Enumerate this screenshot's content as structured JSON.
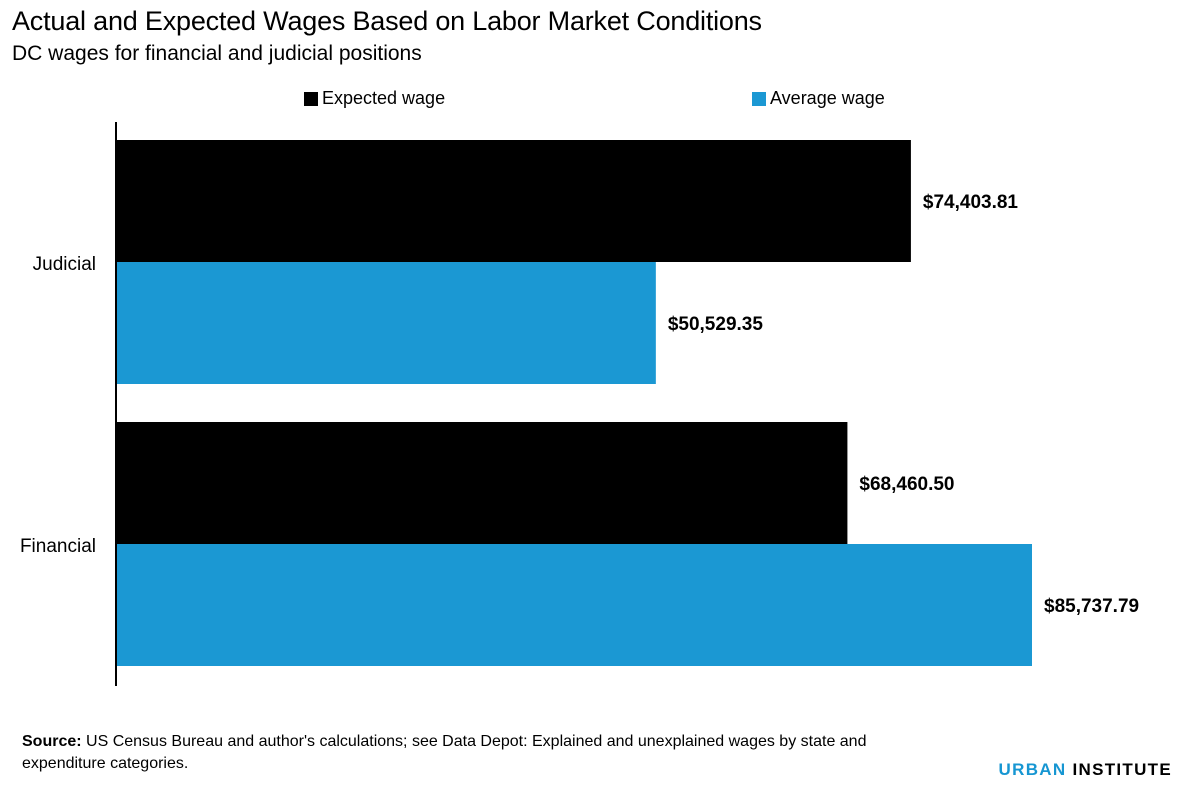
{
  "header": {
    "title": "Actual and Expected Wages Based on Labor Market Conditions",
    "subtitle": "DC wages for financial and judicial positions"
  },
  "footer": {
    "source_label": "Source:",
    "source_text": "US Census Bureau and author's calculations; see Data Depot: Explained and unexplained wages by state and expenditure categories.",
    "brand_part1": "URBAN",
    "brand_part2": "INSTITUTE"
  },
  "colors": {
    "expected": "#000000",
    "average": "#1b98d3",
    "brand_accent": "#1696d2"
  },
  "chart_data": {
    "type": "bar",
    "orientation": "horizontal",
    "title": "Actual and Expected Wages Based on Labor Market Conditions",
    "subtitle": "DC wages for financial and judicial positions",
    "categories": [
      "Judicial",
      "Financial"
    ],
    "series": [
      {
        "name": "Expected wage",
        "values": [
          74403.81,
          68460.5
        ],
        "labels": [
          "$74,403.81",
          "$68,460.50"
        ],
        "color": "#000000"
      },
      {
        "name": "Average wage",
        "values": [
          50529.35,
          85737.79
        ],
        "labels": [
          "$50,529.35",
          "$85,737.79"
        ],
        "color": "#1b98d3"
      }
    ],
    "xlim": [
      0,
      85737.79
    ],
    "grid": false,
    "legend": "top"
  }
}
